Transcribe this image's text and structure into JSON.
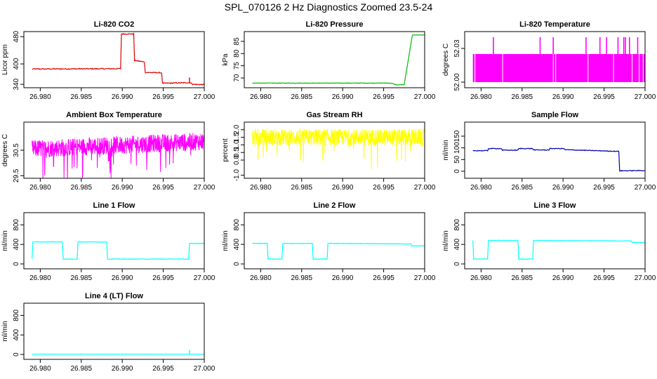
{
  "figure": {
    "title": "SPL_070126  2 Hz Diagnostics Zoomed 23.5-24"
  },
  "chart_data": [
    {
      "type": "line",
      "title": "Li-820 CO2",
      "ylabel": "Licor ppm",
      "color": "#dd0000",
      "xlim": [
        26.978,
        27.0
      ],
      "ylim": [
        330,
        495
      ],
      "xticks": [
        "26.980",
        "26.985",
        "26.990",
        "26.995",
        "27.000"
      ],
      "yticks": [
        "340",
        "400",
        "480"
      ],
      "noise": 1.5,
      "series": [
        {
          "x": [
            26.979,
            26.9898,
            26.9899,
            26.9914,
            26.9915,
            26.9927,
            26.9928,
            26.9948,
            26.9949,
            26.9983,
            26.9986,
            27.0
          ],
          "y": [
            385,
            386,
            488,
            488,
            410,
            406,
            375,
            374,
            343,
            345,
            340,
            339
          ]
        }
      ],
      "spikes": [
        {
          "x": 26.9982,
          "y": 360
        }
      ]
    },
    {
      "type": "line",
      "title": "Li-820 Pressure",
      "ylabel": "kPa",
      "color": "#00bb00",
      "xlim": [
        26.978,
        27.0
      ],
      "ylim": [
        66,
        89
      ],
      "xticks": [
        "26.980",
        "26.985",
        "26.990",
        "26.995",
        "27.000"
      ],
      "yticks": [
        "70",
        "75",
        "80",
        "85"
      ],
      "noise": 0.1,
      "series": [
        {
          "x": [
            26.979,
            26.9958,
            26.9959,
            26.9965,
            26.9975,
            26.9985,
            27.0
          ],
          "y": [
            67.9,
            67.9,
            67.9,
            67.2,
            67.2,
            87.6,
            87.6
          ]
        }
      ]
    },
    {
      "type": "band",
      "title": "Li-820 Temperature",
      "ylabel": "degrees C",
      "color": "#ff00ff",
      "xlim": [
        26.978,
        27.0
      ],
      "ylim": [
        51.995,
        52.045
      ],
      "xticks": [
        "26.980",
        "26.985",
        "26.990",
        "26.995",
        "27.000"
      ],
      "yticks": [
        "52.00",
        "52.03"
      ],
      "band": [
        52.0,
        52.025
      ],
      "spike_top": 52.04,
      "spikes_x": [
        26.9815,
        26.9872,
        26.9888,
        26.9928,
        26.9945,
        26.9953,
        26.9967,
        26.9974,
        26.9976,
        26.9981,
        26.9991
      ]
    },
    {
      "type": "noise",
      "title": "Ambient Box Temperature",
      "ylabel": "degrees C",
      "color": "#ff00ff",
      "xlim": [
        26.978,
        27.0
      ],
      "ylim": [
        29.4,
        31.6
      ],
      "xticks": [
        "26.980",
        "26.985",
        "26.990",
        "26.995",
        "27.000"
      ],
      "yticks": [
        "29.5",
        "30.5"
      ],
      "mean_start": 30.55,
      "mean_end": 30.85,
      "amplitude": 0.35
    },
    {
      "type": "noise",
      "title": "Gas Stream RH",
      "ylabel": "percent",
      "color": "#ffff00",
      "xlim": [
        26.978,
        27.0
      ],
      "ylim": [
        -1.2,
        2.5
      ],
      "xticks": [
        "26.980",
        "26.985",
        "26.990",
        "26.995",
        "27.000"
      ],
      "yticks": [
        "-1.0",
        "0.0",
        "0.5",
        "1.0",
        "1.5",
        "2.0"
      ],
      "mean_start": 1.5,
      "mean_end": 1.5,
      "amplitude": 0.55
    },
    {
      "type": "line",
      "title": "Sample Flow",
      "ylabel": "ml/min",
      "color": "#0000aa",
      "xlim": [
        26.978,
        27.0
      ],
      "ylim": [
        -30,
        210
      ],
      "xticks": [
        "26.980",
        "26.985",
        "26.990",
        "26.995",
        "27.000"
      ],
      "yticks": [
        "0",
        "50",
        "100",
        "150"
      ],
      "noise": 1.5,
      "series": [
        {
          "x": [
            26.979,
            26.9808,
            26.9809,
            26.9825,
            26.9826,
            26.9845,
            26.9846,
            26.9863,
            26.9864,
            26.9883,
            26.9884,
            26.9901,
            26.9902,
            26.9968,
            26.9969,
            27.0
          ],
          "y": [
            88,
            88,
            97,
            97,
            90,
            90,
            97,
            97,
            91,
            91,
            97,
            97,
            92,
            85,
            2,
            3
          ]
        }
      ]
    },
    {
      "type": "line",
      "title": "Line 1 Flow",
      "ylabel": "ml/min",
      "color": "#00ffff",
      "xlim": [
        26.978,
        27.0
      ],
      "ylim": [
        -100,
        1050
      ],
      "xticks": [
        "26.980",
        "26.985",
        "26.990",
        "26.995",
        "27.000"
      ],
      "yticks": [
        "0",
        "400",
        "800"
      ],
      "noise": 5,
      "series": [
        {
          "x": [
            26.979,
            26.9791,
            26.9827,
            26.9828,
            26.9845,
            26.9846,
            26.9881,
            26.9882,
            26.9981,
            26.9982,
            27.0
          ],
          "y": [
            100,
            450,
            450,
            100,
            100,
            450,
            450,
            100,
            100,
            420,
            420
          ]
        }
      ]
    },
    {
      "type": "line",
      "title": "Line 2 Flow",
      "ylabel": "ml/min",
      "color": "#00ffff",
      "xlim": [
        26.978,
        27.0
      ],
      "ylim": [
        -100,
        1050
      ],
      "xticks": [
        "26.980",
        "26.985",
        "26.990",
        "26.995",
        "27.000"
      ],
      "yticks": [
        "0",
        "400",
        "800"
      ],
      "noise": 5,
      "series": [
        {
          "x": [
            26.979,
            26.9808,
            26.9809,
            26.9826,
            26.9827,
            26.9863,
            26.9864,
            26.9881,
            26.9882,
            26.9983,
            26.9984,
            27.0
          ],
          "y": [
            420,
            420,
            100,
            100,
            420,
            420,
            100,
            100,
            420,
            410,
            370,
            370
          ]
        }
      ]
    },
    {
      "type": "line",
      "title": "Line 3 Flow",
      "ylabel": "ml/min",
      "color": "#00ffff",
      "xlim": [
        26.978,
        27.0
      ],
      "ylim": [
        -100,
        1050
      ],
      "xticks": [
        "26.980",
        "26.985",
        "26.990",
        "26.995",
        "27.000"
      ],
      "yticks": [
        "0",
        "400",
        "800"
      ],
      "noise": 5,
      "series": [
        {
          "x": [
            26.979,
            26.9791,
            26.9808,
            26.9809,
            26.9845,
            26.9846,
            26.9863,
            26.9864,
            26.9983,
            26.9984,
            27.0
          ],
          "y": [
            480,
            100,
            100,
            480,
            480,
            100,
            100,
            480,
            470,
            440,
            440
          ]
        }
      ]
    },
    {
      "type": "line",
      "title": "Line 4 (LT) Flow",
      "ylabel": "ml/min",
      "color": "#00ffff",
      "xlim": [
        26.978,
        27.0
      ],
      "ylim": [
        -100,
        1050
      ],
      "xticks": [
        "26.980",
        "26.985",
        "26.990",
        "26.995",
        "27.000"
      ],
      "yticks": [
        "0",
        "400",
        "800"
      ],
      "noise": 1,
      "series": [
        {
          "x": [
            26.979,
            27.0
          ],
          "y": [
            5,
            5
          ]
        }
      ],
      "spikes": [
        {
          "x": 26.9982,
          "y": 90
        }
      ]
    }
  ]
}
